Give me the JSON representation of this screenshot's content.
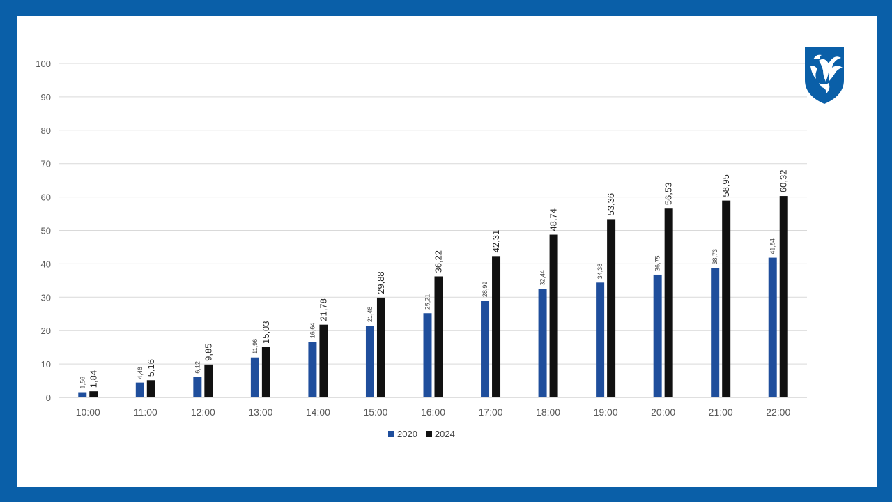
{
  "colors": {
    "frame": "#0a5fa8",
    "series_2020": "#1f4e9c",
    "series_2024": "#111111",
    "grid": "#d9d9d9",
    "axis_text": "#595959",
    "logo_shield": "#0a5fa8"
  },
  "logo": {
    "icon": "bird-crest-shield-icon"
  },
  "chart_data": {
    "type": "bar",
    "title": "",
    "xlabel": "",
    "ylabel": "",
    "ylim": [
      0,
      100
    ],
    "yticks": [
      0,
      10,
      20,
      30,
      40,
      50,
      60,
      70,
      80,
      90,
      100
    ],
    "grid": true,
    "legend_position": "bottom",
    "categories": [
      "10:00",
      "11:00",
      "12:00",
      "13:00",
      "14:00",
      "15:00",
      "16:00",
      "17:00",
      "18:00",
      "19:00",
      "20:00",
      "21:00",
      "22:00"
    ],
    "series": [
      {
        "name": "2020",
        "values": [
          1.56,
          4.46,
          6.12,
          11.96,
          16.64,
          21.48,
          25.21,
          28.99,
          32.44,
          34.38,
          36.75,
          38.73,
          41.84
        ],
        "labels": [
          "1,56",
          "4,46",
          "6,12",
          "11,96",
          "16,64",
          "21,48",
          "25,21",
          "28,99",
          "32,44",
          "34,38",
          "36,75",
          "38,73",
          "41,84"
        ]
      },
      {
        "name": "2024",
        "values": [
          1.84,
          5.16,
          9.85,
          15.03,
          21.78,
          29.88,
          36.22,
          42.31,
          48.74,
          53.36,
          56.53,
          58.95,
          60.32
        ],
        "labels": [
          "1,84",
          "5,16",
          "9,85",
          "15,03",
          "21,78",
          "29,88",
          "36,22",
          "42,31",
          "48,74",
          "53,36",
          "56,53",
          "58,95",
          "60,32"
        ]
      }
    ]
  }
}
